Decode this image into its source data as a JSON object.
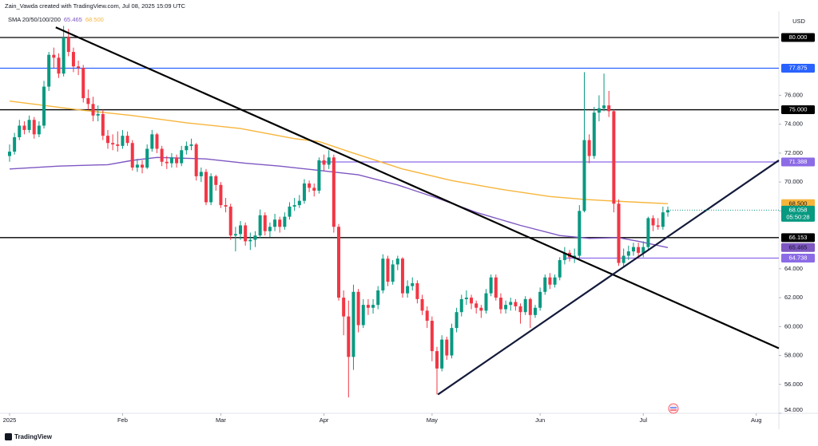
{
  "chart_data": {
    "type": "candlestick",
    "header": "Zain_Vawda created with TradingView.com, Jul 08, 2025 15:09 UTC",
    "indicator_label": "SMA 20/50/100/200",
    "currency": "USD",
    "watermark": "TradingView",
    "grid": false,
    "up_color": "#089981",
    "down_color": "#f23645",
    "xlim": [
      -1.95,
      156.6
    ],
    "xticks": [
      {
        "value": 0,
        "label": "2025"
      },
      {
        "value": 23,
        "label": "Feb"
      },
      {
        "value": 43,
        "label": "Mar"
      },
      {
        "value": 64,
        "label": "Apr"
      },
      {
        "value": 86,
        "label": "May"
      },
      {
        "value": 108,
        "label": "Jun"
      },
      {
        "value": 129,
        "label": "Jul"
      },
      {
        "value": 152,
        "label": "Aug"
      }
    ],
    "ylim": [
      54,
      81.82
    ],
    "yticks": [
      {
        "value": 54,
        "label": "54.000"
      },
      {
        "value": 56,
        "label": "56.000"
      },
      {
        "value": 58,
        "label": "58.000"
      },
      {
        "value": 60,
        "label": "60.000"
      },
      {
        "value": 62,
        "label": "62.000"
      },
      {
        "value": 64,
        "label": "64.000"
      },
      {
        "value": 68,
        "label": "68.000"
      },
      {
        "value": 70,
        "label": "70.000"
      },
      {
        "value": 72,
        "label": "72.000"
      },
      {
        "value": 74,
        "label": "74.000"
      },
      {
        "value": 76,
        "label": "76.000"
      }
    ],
    "open": [
      71.8,
      72.1,
      73.1,
      73.9,
      73.6,
      74.3,
      73.3,
      73.9,
      76.6,
      78.8,
      78.6,
      77.5,
      80.0,
      79.0,
      78.0,
      77.9,
      75.8,
      75.4,
      74.6,
      74.7,
      73.2,
      72.7,
      72.6,
      72.5,
      73.2,
      72.7,
      71.0,
      71.2,
      71.0,
      72.3,
      73.3,
      72.3,
      71.4,
      71.3,
      71.7,
      71.3,
      72.2,
      72.5,
      72.6,
      70.4,
      70.7,
      68.6,
      70.4,
      69.8,
      68.4,
      68.3,
      66.3,
      66.4,
      67.0,
      65.9,
      66.0,
      66.3,
      67.7,
      66.6,
      66.9,
      67.4,
      66.9,
      67.6,
      68.3,
      68.4,
      68.7,
      69.9,
      69.6,
      69.4,
      71.5,
      71.2,
      71.7,
      66.9,
      62.0,
      60.7,
      57.9,
      62.4,
      60.1,
      61.5,
      61.3,
      61.5,
      62.5,
      64.7,
      63.1,
      64.3,
      64.7,
      62.3,
      62.8,
      63.0,
      61.9,
      61.1,
      60.4,
      58.3,
      57.1,
      59.1,
      58.0,
      59.9,
      61.0,
      61.9,
      62.0,
      61.6,
      61.3,
      61.1,
      62.3,
      63.4,
      62.0,
      61.2,
      61.5,
      61.7,
      61.4,
      61.0,
      61.9,
      60.8,
      61.3,
      62.4,
      63.4,
      62.9,
      63.4,
      64.6,
      65.1,
      64.8,
      64.9,
      68.0,
      72.9,
      71.8,
      74.8,
      75.1,
      75.3,
      74.9,
      68.5,
      64.4,
      64.9,
      65.2,
      65.5,
      65.1,
      65.5,
      67.5,
      67.0,
      66.9,
      67.9
    ],
    "high": [
      72.6,
      73.4,
      74.3,
      74.2,
      74.6,
      74.5,
      74.2,
      77.0,
      79.0,
      79.3,
      78.9,
      80.8,
      80.6,
      79.3,
      78.4,
      78.1,
      76.4,
      75.9,
      75.3,
      75.0,
      73.6,
      73.3,
      73.5,
      73.6,
      73.5,
      72.9,
      71.6,
      71.5,
      72.6,
      73.6,
      73.4,
      72.5,
      71.8,
      72.0,
      71.9,
      72.5,
      72.8,
      73.0,
      72.7,
      71.0,
      70.9,
      70.6,
      70.5,
      70.0,
      68.9,
      68.5,
      66.9,
      67.3,
      67.2,
      66.5,
      66.6,
      68.1,
      67.9,
      67.2,
      67.8,
      67.6,
      67.9,
      68.6,
      68.9,
      69.1,
      70.2,
      70.1,
      69.9,
      71.7,
      71.9,
      72.2,
      71.9,
      67.1,
      62.5,
      61.8,
      62.9,
      62.6,
      61.9,
      61.9,
      61.9,
      62.8,
      65.0,
      64.9,
      64.6,
      64.9,
      64.8,
      63.2,
      63.4,
      63.2,
      62.2,
      61.4,
      60.7,
      58.6,
      59.4,
      59.3,
      60.2,
      61.3,
      62.2,
      62.5,
      62.2,
      61.8,
      61.5,
      62.6,
      63.6,
      63.6,
      62.3,
      61.8,
      62.0,
      61.9,
      61.6,
      62.1,
      62.0,
      61.5,
      62.7,
      63.6,
      63.7,
      63.6,
      64.8,
      65.5,
      65.3,
      65.4,
      68.4,
      77.6,
      73.3,
      75.2,
      76.0,
      77.5,
      76.3,
      75.0,
      68.8,
      65.4,
      65.6,
      65.8,
      65.8,
      65.9,
      67.6,
      67.7,
      67.5,
      68.3,
      68.3
    ],
    "low": [
      71.4,
      71.9,
      72.9,
      73.3,
      73.4,
      73.0,
      73.1,
      73.7,
      76.3,
      77.9,
      77.2,
      77.3,
      78.7,
      77.6,
      77.4,
      75.5,
      75.0,
      74.2,
      74.2,
      72.9,
      72.3,
      72.2,
      72.1,
      72.3,
      72.5,
      70.8,
      70.7,
      70.6,
      70.9,
      72.1,
      72.0,
      71.1,
      70.9,
      71.0,
      71.0,
      71.1,
      71.9,
      72.2,
      70.1,
      70.0,
      68.4,
      68.4,
      69.4,
      68.2,
      67.9,
      66.0,
      65.2,
      66.0,
      65.6,
      65.3,
      65.5,
      66.1,
      66.3,
      66.2,
      66.6,
      66.5,
      66.7,
      67.4,
      68.0,
      68.2,
      68.5,
      69.3,
      69.0,
      69.2,
      70.8,
      70.9,
      66.5,
      61.8,
      59.4,
      55.1,
      57.0,
      59.6,
      59.9,
      60.8,
      60.9,
      61.2,
      62.3,
      62.8,
      62.9,
      63.9,
      62.0,
      62.0,
      62.5,
      61.6,
      60.8,
      59.9,
      57.6,
      55.3,
      56.9,
      57.7,
      57.8,
      59.6,
      60.7,
      61.5,
      61.2,
      60.9,
      60.6,
      60.9,
      62.1,
      61.8,
      60.9,
      60.9,
      61.1,
      61.1,
      60.2,
      60.8,
      59.9,
      60.6,
      61.1,
      62.2,
      62.6,
      62.7,
      63.2,
      64.3,
      64.5,
      64.4,
      64.7,
      67.9,
      71.3,
      71.6,
      74.2,
      74.9,
      74.5,
      67.9,
      64.2,
      64.1,
      64.6,
      64.9,
      64.7,
      64.8,
      65.3,
      66.6,
      66.7,
      66.7,
      67.6
    ],
    "close": [
      72.1,
      73.1,
      73.9,
      73.6,
      74.3,
      73.3,
      73.9,
      76.6,
      78.8,
      78.6,
      77.5,
      80.0,
      79.0,
      78.0,
      77.9,
      75.8,
      75.4,
      74.6,
      74.7,
      73.2,
      72.7,
      72.6,
      72.5,
      73.2,
      72.7,
      71.0,
      71.2,
      71.0,
      72.3,
      73.3,
      72.3,
      71.4,
      71.3,
      71.7,
      71.3,
      72.2,
      72.5,
      72.6,
      70.4,
      70.7,
      68.6,
      70.4,
      69.8,
      68.4,
      68.3,
      66.3,
      66.4,
      67.0,
      65.9,
      66.0,
      66.3,
      67.7,
      66.6,
      66.9,
      67.4,
      66.9,
      67.6,
      68.3,
      68.4,
      68.7,
      69.9,
      69.6,
      69.4,
      71.5,
      71.2,
      71.7,
      66.9,
      62.0,
      60.7,
      57.9,
      62.4,
      60.1,
      61.5,
      61.3,
      61.5,
      62.5,
      64.7,
      63.1,
      64.3,
      64.7,
      62.3,
      62.8,
      63.0,
      61.9,
      61.1,
      60.4,
      58.3,
      57.1,
      59.1,
      58.0,
      59.9,
      61.0,
      61.9,
      62.0,
      61.6,
      61.3,
      61.1,
      62.3,
      63.4,
      62.0,
      61.2,
      61.5,
      61.7,
      61.4,
      61.0,
      61.9,
      60.8,
      61.3,
      62.4,
      63.4,
      62.9,
      63.4,
      64.6,
      65.1,
      64.8,
      64.9,
      68.0,
      72.9,
      71.8,
      74.8,
      75.1,
      75.3,
      74.9,
      68.5,
      64.4,
      64.9,
      65.2,
      65.5,
      65.1,
      65.5,
      67.5,
      67.0,
      66.9,
      67.9,
      68.058
    ],
    "last_price_label": "68.058",
    "countdown": "05:50:28",
    "series": [
      {
        "color": "#7e57c2",
        "last_label": "65.465",
        "x": [
          0,
          10,
          20,
          25,
          30,
          40,
          48,
          55,
          63,
          71,
          79,
          87,
          95,
          104,
          112,
          118,
          124,
          128,
          134
        ],
        "values": [
          70.9,
          71.1,
          71.2,
          71.5,
          71.7,
          71.6,
          71.3,
          71.1,
          70.8,
          70.5,
          69.8,
          68.9,
          67.9,
          67.0,
          66.3,
          66.1,
          66.15,
          65.9,
          65.465
        ]
      },
      {
        "color": "#f7b53b",
        "last_label": "68.500",
        "x": [
          0,
          14,
          25,
          36,
          47,
          58,
          63,
          70,
          80,
          90,
          100,
          110,
          117,
          122,
          128,
          134
        ],
        "values": [
          75.6,
          75.0,
          74.6,
          74.1,
          73.7,
          73.0,
          72.8,
          72.0,
          70.9,
          70.1,
          69.5,
          69.0,
          68.8,
          68.7,
          68.6,
          68.5
        ]
      }
    ],
    "levels": [
      {
        "value": 80,
        "label": "80.000",
        "color": "#000000",
        "text_color": "#ffffff"
      },
      {
        "value": 77.875,
        "label": "77.875",
        "color": "#2962ff",
        "text_color": "#ffffff"
      },
      {
        "value": 75,
        "label": "75.000",
        "color": "#000000",
        "text_color": "#ffffff"
      },
      {
        "value": 71.388,
        "label": "71.388",
        "color": "#8c6be6",
        "text_color": "#ffffff",
        "from": 63
      },
      {
        "value": 66.153,
        "label": "66.153",
        "color": "#000000",
        "text_color": "#ffffff"
      },
      {
        "value": 64.738,
        "label": "64.738",
        "color": "#8c6be6",
        "text_color": "#ffffff",
        "from": 113
      }
    ],
    "trendlines": [
      {
        "color": "#000000",
        "x": [
          9.4,
          156.6
        ],
        "y": [
          80.7,
          58.5
        ]
      },
      {
        "color": "#131a3a",
        "x": [
          87.2,
          156.6
        ],
        "y": [
          55.3,
          71.5
        ]
      }
    ]
  }
}
